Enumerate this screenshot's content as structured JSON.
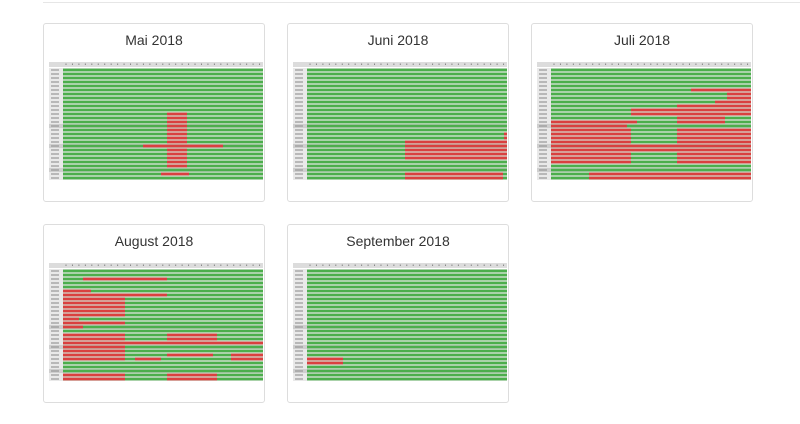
{
  "colors": {
    "available": "#4cae4c",
    "booked": "#d9403f",
    "separator": "#cfcfcf",
    "label": "#888888"
  },
  "months": [
    {
      "title": "Mai 2018",
      "rows": 28,
      "separators": [
        14,
        19,
        25
      ],
      "bookings": [
        {
          "from": 0.52,
          "to": 0.62,
          "rows": [
            11,
            12,
            13,
            14,
            15,
            16,
            17,
            18,
            20,
            21,
            22,
            23,
            24
          ]
        },
        {
          "from": 0.4,
          "to": 0.8,
          "rows": [
            19
          ]
        },
        {
          "from": 0.49,
          "to": 0.63,
          "rows": [
            26
          ]
        }
      ]
    },
    {
      "title": "Juni 2018",
      "rows": 28,
      "separators": [
        14,
        19,
        25
      ],
      "bookings": [
        {
          "from": 0.985,
          "to": 1.0,
          "rows": [
            16,
            17
          ]
        },
        {
          "from": 0.49,
          "to": 1.0,
          "rows": [
            18,
            19,
            20,
            21,
            22
          ]
        },
        {
          "from": 0.49,
          "to": 0.98,
          "rows": [
            26,
            27
          ]
        }
      ]
    },
    {
      "title": "Juli 2018",
      "rows": 28,
      "separators": [
        14,
        19,
        25
      ],
      "bookings": [
        {
          "from": 0.7,
          "to": 1.0,
          "rows": [
            5
          ]
        },
        {
          "from": 0.88,
          "to": 1.0,
          "rows": [
            6,
            7
          ]
        },
        {
          "from": 0.82,
          "to": 1.0,
          "rows": [
            8
          ]
        },
        {
          "from": 0.63,
          "to": 1.0,
          "rows": [
            9
          ]
        },
        {
          "from": 0.4,
          "to": 1.0,
          "rows": [
            10,
            11
          ]
        },
        {
          "from": 0.63,
          "to": 0.87,
          "rows": [
            12,
            13
          ]
        },
        {
          "from": 0.0,
          "to": 0.43,
          "rows": [
            13
          ]
        },
        {
          "from": 0.0,
          "to": 0.38,
          "rows": [
            14
          ]
        },
        {
          "from": 0.63,
          "to": 1.0,
          "rows": [
            15,
            16,
            17,
            18
          ]
        },
        {
          "from": 0.0,
          "to": 0.4,
          "rows": [
            15,
            16,
            17,
            18
          ]
        },
        {
          "from": 0.0,
          "to": 1.0,
          "rows": [
            19,
            20
          ]
        },
        {
          "from": 0.0,
          "to": 0.4,
          "rows": [
            21,
            22,
            23
          ]
        },
        {
          "from": 0.63,
          "to": 1.0,
          "rows": [
            21,
            22,
            23
          ]
        },
        {
          "from": 0.19,
          "to": 1.0,
          "rows": [
            26,
            27
          ]
        }
      ]
    },
    {
      "title": "August 2018",
      "rows": 28,
      "separators": [
        14,
        19,
        25
      ],
      "bookings": [
        {
          "from": 0.1,
          "to": 0.52,
          "rows": [
            2
          ]
        },
        {
          "from": 0.0,
          "to": 0.52,
          "rows": [
            6
          ]
        },
        {
          "from": 0.0,
          "to": 0.14,
          "rows": [
            5
          ]
        },
        {
          "from": 0.0,
          "to": 0.31,
          "rows": [
            7,
            8,
            9,
            10,
            11
          ]
        },
        {
          "from": 0.0,
          "to": 0.08,
          "rows": [
            12
          ]
        },
        {
          "from": 0.0,
          "to": 0.31,
          "rows": [
            13
          ]
        },
        {
          "from": 0.0,
          "to": 0.1,
          "rows": [
            14
          ]
        },
        {
          "from": 0.0,
          "to": 0.31,
          "rows": [
            16,
            17
          ]
        },
        {
          "from": 0.52,
          "to": 0.77,
          "rows": [
            16,
            17
          ]
        },
        {
          "from": 0.0,
          "to": 1.0,
          "rows": [
            18
          ]
        },
        {
          "from": 0.0,
          "to": 0.31,
          "rows": [
            19,
            20,
            21,
            22
          ]
        },
        {
          "from": 0.36,
          "to": 0.49,
          "rows": [
            22
          ]
        },
        {
          "from": 0.52,
          "to": 0.75,
          "rows": [
            21
          ]
        },
        {
          "from": 0.84,
          "to": 1.0,
          "rows": [
            21,
            22
          ]
        },
        {
          "from": 0.0,
          "to": 0.31,
          "rows": [
            26,
            27
          ]
        },
        {
          "from": 0.52,
          "to": 0.77,
          "rows": [
            26,
            27
          ]
        }
      ]
    },
    {
      "title": "September 2018",
      "rows": 28,
      "separators": [
        14,
        19,
        25
      ],
      "bookings": [
        {
          "from": 0.0,
          "to": 0.18,
          "rows": [
            22,
            23
          ]
        }
      ]
    }
  ]
}
